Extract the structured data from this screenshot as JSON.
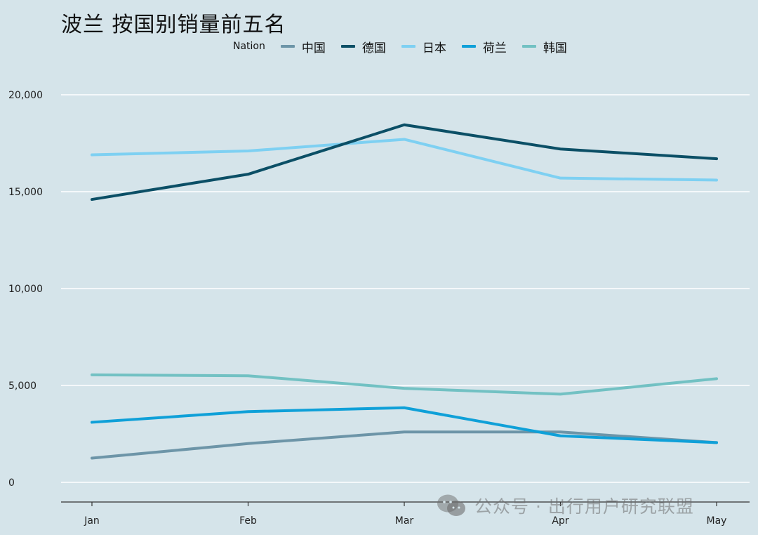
{
  "colors": {
    "background": "#d5e4ea",
    "grid": "#ffffff",
    "axis": "#333333"
  },
  "chart_data": {
    "type": "line",
    "title": "波兰 按国别销量前五名",
    "legend_title": "Nation",
    "legend_position": "top",
    "categories": [
      "Jan",
      "Feb",
      "Mar",
      "Apr",
      "May"
    ],
    "yticks": [
      0,
      5000,
      10000,
      15000,
      20000
    ],
    "ytick_labels": [
      "0",
      "5,000",
      "10,000",
      "15,000",
      "20,000"
    ],
    "ylim": [
      -1000,
      21700
    ],
    "xlabel": "",
    "ylabel": "",
    "grid": true,
    "series": [
      {
        "name": "中国",
        "color": "#6d95a8",
        "values": [
          1250,
          2000,
          2600,
          2600,
          2050
        ]
      },
      {
        "name": "德国",
        "color": "#0b4f66",
        "values": [
          14600,
          15900,
          18450,
          17200,
          16700
        ]
      },
      {
        "name": "日本",
        "color": "#7ed0f2",
        "values": [
          16900,
          17100,
          17700,
          15700,
          15600
        ]
      },
      {
        "name": "荷兰",
        "color": "#0fa0d8",
        "values": [
          3100,
          3650,
          3850,
          2400,
          2050
        ]
      },
      {
        "name": "韩国",
        "color": "#72c1c3",
        "values": [
          5550,
          5500,
          4850,
          4550,
          5350
        ]
      }
    ]
  },
  "watermark": {
    "icon": "wechat-icon",
    "text": "公众号 · 出行用户研究联盟"
  }
}
